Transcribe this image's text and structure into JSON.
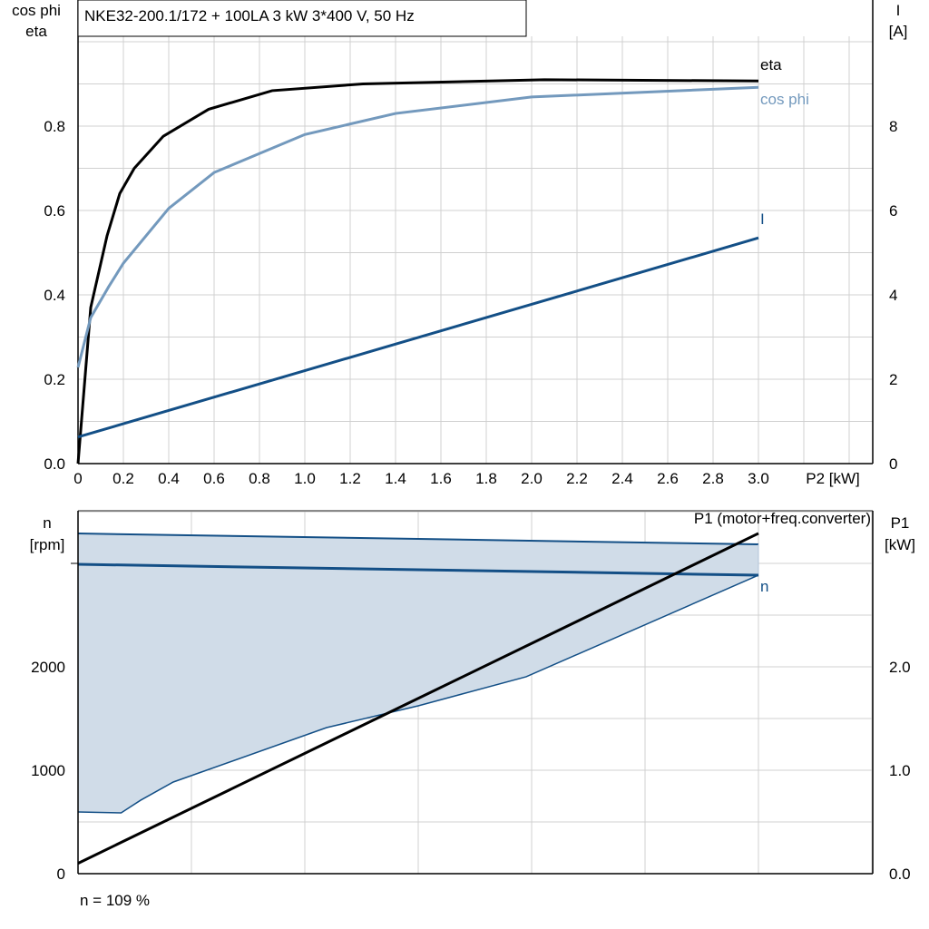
{
  "title": "NKE32-200.1/172 + 100LA   3 kW   3*400 V, 50 Hz",
  "footer": "n = 109 %",
  "colors": {
    "eta": "#000000",
    "cos_phi": "#7399bd",
    "I": "#134f86",
    "n": "#134f86",
    "n_fill": "#d0dce8",
    "P1": "#000000",
    "grid": "#d0d0d0"
  },
  "chart_data": [
    {
      "type": "line",
      "xlabel": "P2 [kW]",
      "ylabel_left": [
        "cos phi",
        "eta"
      ],
      "ylabel_right": [
        "I",
        "[A]"
      ],
      "xlim": [
        0,
        3.5
      ],
      "ylim_left": [
        0,
        1.0
      ],
      "ylim_right": [
        0,
        10
      ],
      "x_ticks": [
        "0",
        "0.2",
        "0.4",
        "0.6",
        "0.8",
        "1.0",
        "1.2",
        "1.4",
        "1.6",
        "1.8",
        "2.0",
        "2.2",
        "2.4",
        "2.6",
        "2.8",
        "3.0"
      ],
      "y_ticks_left": [
        "0.0",
        "0.2",
        "0.4",
        "0.6",
        "0.8"
      ],
      "y_ticks_right": [
        "0",
        "2",
        "4",
        "6",
        "8"
      ],
      "grid": true,
      "series": [
        {
          "name": "eta",
          "axis": "left",
          "x": [
            0,
            0.056,
            0.128,
            0.184,
            0.248,
            0.376,
            0.576,
            0.856,
            1.256,
            2.056,
            3.0
          ],
          "y": [
            0,
            0.37,
            0.54,
            0.64,
            0.7,
            0.776,
            0.84,
            0.884,
            0.9,
            0.91,
            0.907
          ]
        },
        {
          "name": "cos phi",
          "axis": "left",
          "x": [
            0,
            0.056,
            0.136,
            0.2,
            0.4,
            0.6,
            1.0,
            1.4,
            2.0,
            3.0
          ],
          "y": [
            0.228,
            0.346,
            0.42,
            0.475,
            0.605,
            0.69,
            0.78,
            0.83,
            0.869,
            0.892
          ]
        },
        {
          "name": "I",
          "axis": "right",
          "x": [
            0,
            3.0
          ],
          "y": [
            0.63,
            5.35
          ]
        }
      ]
    },
    {
      "type": "line",
      "ylabel_left": [
        "n",
        "[rpm]"
      ],
      "ylabel_right": [
        "P1",
        "[kW]"
      ],
      "xlim": [
        0,
        3.5
      ],
      "ylim_left": [
        0,
        3500
      ],
      "ylim_right": [
        0,
        3.5
      ],
      "y_ticks_left": [
        "0",
        "1000",
        "2000"
      ],
      "y_ticks_right": [
        "0.0",
        "1.0",
        "2.0"
      ],
      "grid": true,
      "series": [
        {
          "name": "n",
          "axis": "left",
          "x": [
            0,
            3.0
          ],
          "y": [
            2991,
            2886
          ]
        },
        {
          "name": "n range upper",
          "axis": "left",
          "x": [
            0,
            3.0
          ],
          "y": [
            3289,
            3184
          ]
        },
        {
          "name": "n range lower",
          "axis": "left",
          "x": [
            0,
            0.19,
            0.276,
            0.42,
            1.096,
            1.5,
            1.976,
            3.0
          ],
          "y": [
            596,
            588,
            710,
            886,
            1412,
            1623,
            1904,
            2886
          ]
        },
        {
          "name": "P1 (motor+freq.converter)",
          "axis": "right",
          "x": [
            0,
            3.0
          ],
          "y": [
            0.1,
            3.29
          ]
        }
      ]
    }
  ]
}
